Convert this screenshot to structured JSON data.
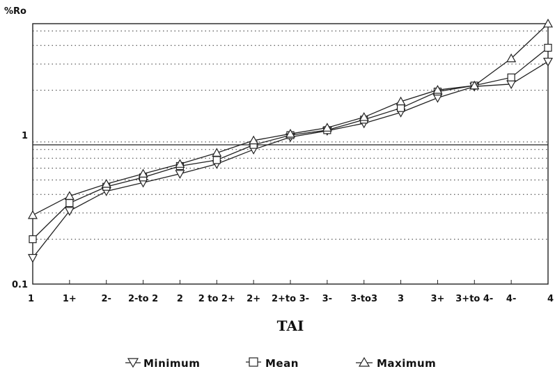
{
  "chart_data": {
    "type": "line",
    "title": "",
    "xlabel": "TAI",
    "ylabel": "%Ro",
    "yscale": "log",
    "ylim": [
      0.1,
      5.6
    ],
    "y_ticks": [
      {
        "value": 0.1,
        "label": "0.1"
      },
      {
        "value": 1,
        "label": "1"
      }
    ],
    "grid": "horizontal dotted at log minor ticks",
    "categories": [
      "1",
      "1+",
      "2-",
      "2-to 2",
      "2",
      "2 to 2+",
      "2+",
      "2+to 3-",
      "3-",
      "3-to3",
      "3",
      "3+",
      "3+to 4-",
      "4-",
      "4"
    ],
    "series": [
      {
        "name": "Minimum",
        "marker": "triangle-down",
        "x": [
          0,
          1,
          2,
          3,
          4,
          5,
          6,
          7,
          8,
          9,
          10,
          11,
          12,
          13,
          14
        ],
        "values": [
          0.15,
          0.31,
          0.42,
          0.48,
          0.55,
          0.64,
          0.8,
          0.97,
          1.07,
          1.2,
          1.42,
          1.78,
          2.12,
          2.2,
          3.12
        ]
      },
      {
        "name": "Mean",
        "marker": "square",
        "x": [
          0,
          1,
          2,
          3,
          4,
          5,
          6,
          7,
          8,
          9,
          10,
          11,
          12,
          13,
          14
        ],
        "values": [
          0.2,
          0.35,
          0.45,
          0.52,
          0.62,
          0.68,
          0.86,
          1.0,
          1.08,
          1.27,
          1.52,
          1.96,
          2.15,
          2.44,
          3.86
        ]
      },
      {
        "name": "Maximum",
        "marker": "triangle-up",
        "x": [
          0,
          1,
          2,
          3,
          4,
          5,
          6,
          7,
          8,
          9,
          10,
          11,
          12,
          13,
          14
        ],
        "values": [
          0.29,
          0.39,
          0.47,
          0.55,
          0.64,
          0.76,
          0.92,
          1.02,
          1.12,
          1.32,
          1.68,
          2.01,
          2.15,
          3.27,
          5.6
        ]
      }
    ],
    "legend": {
      "position": "bottom",
      "entries": [
        "Minimum",
        "Mean",
        "Maximum"
      ]
    }
  }
}
